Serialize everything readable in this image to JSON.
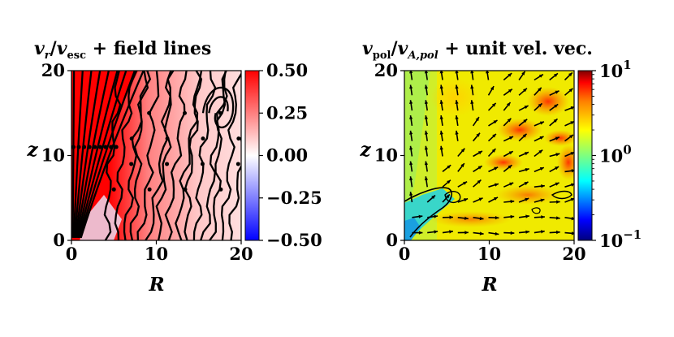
{
  "chart_data": [
    {
      "type": "heatmap",
      "title_parts": {
        "numerator": "v",
        "numerator_sub": "r",
        "slash": "/",
        "denominator": "v",
        "denominator_sub": "esc",
        "suffix": " + field lines"
      },
      "xlabel": "R",
      "ylabel": "z",
      "xlim": [
        0,
        20
      ],
      "ylim": [
        0,
        20
      ],
      "xticks": [
        "0",
        "10",
        "20"
      ],
      "yticks": [
        "0",
        "10",
        "20"
      ],
      "colorbar": {
        "scale": "linear",
        "range": [
          -0.5,
          0.5
        ],
        "colors": [
          "#0000ff",
          "#ffffff",
          "#ff0000"
        ],
        "ticks": [
          "−0.50",
          "−0.25",
          "0.00",
          "0.25",
          "0.50"
        ],
        "tick_values": [
          -0.5,
          -0.25,
          0,
          0.25,
          0.5
        ]
      },
      "overlay": "streamlines (magnetic field lines)",
      "features": {
        "outflow_cone_edge": [
          [
            0.5,
            0
          ],
          [
            4,
            10
          ],
          [
            7.5,
            20
          ]
        ],
        "outflow_value": 0.5
      }
    },
    {
      "type": "heatmap",
      "title_parts": {
        "numerator": "v",
        "numerator_sub": "pol",
        "slash": "/",
        "denominator": "v",
        "denominator_sub": "A,pol",
        "suffix": " + unit vel. vec."
      },
      "xlabel": "R",
      "ylabel": "z",
      "xlim": [
        0,
        20
      ],
      "ylim": [
        0,
        20
      ],
      "xticks": [
        "0",
        "10",
        "20"
      ],
      "yticks": [
        "0",
        "10",
        "20"
      ],
      "colorbar": {
        "scale": "log",
        "range": [
          0.1,
          10
        ],
        "colors": [
          "#00007f",
          "#0000ff",
          "#00ffff",
          "#7fff7f",
          "#ffff00",
          "#ff7f00",
          "#ff0000",
          "#7f0000"
        ],
        "ticks": [
          {
            "base": "10",
            "exp": "1",
            "value": 10
          },
          {
            "base": "10",
            "exp": "0",
            "value": 1
          },
          {
            "base": "10",
            "exp": "−1",
            "value": 0.1
          }
        ]
      },
      "overlay": "unit velocity vectors (quiver)",
      "features": {
        "contour_level": 1,
        "low_region": "cyan wedge near origin along the axis",
        "high_region": "red patches at R 12-19, z 8-18"
      }
    }
  ]
}
